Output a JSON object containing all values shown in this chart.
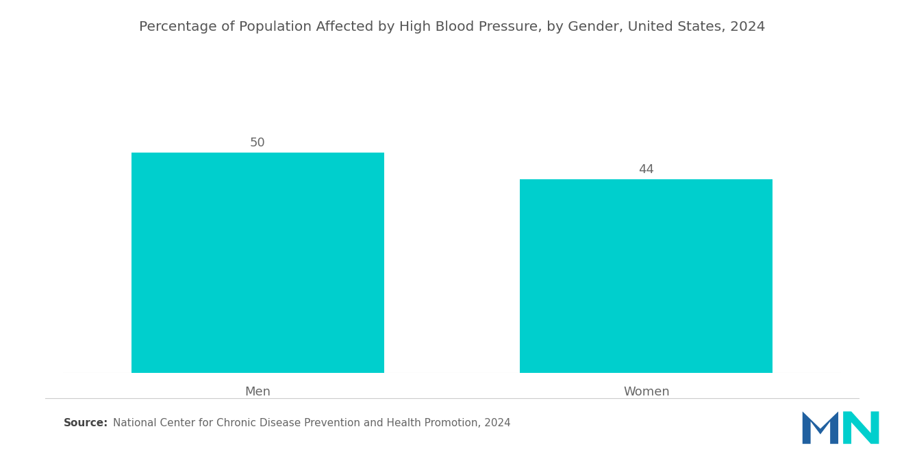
{
  "title": "Percentage of Population Affected by High Blood Pressure, by Gender, United States, 2024",
  "categories": [
    "Men",
    "Women"
  ],
  "values": [
    50,
    44
  ],
  "bar_color": "#00CFCD",
  "value_labels": [
    "50",
    "44"
  ],
  "source_bold": "Source:",
  "source_text": "National Center for Chronic Disease Prevention and Health Promotion, 2024",
  "background_color": "#ffffff",
  "title_fontsize": 14.5,
  "label_fontsize": 13,
  "value_fontsize": 13,
  "source_fontsize": 11,
  "ylim": [
    0,
    65
  ],
  "x_positions": [
    1,
    3
  ],
  "bar_width": 1.3,
  "xlim": [
    0,
    4
  ]
}
